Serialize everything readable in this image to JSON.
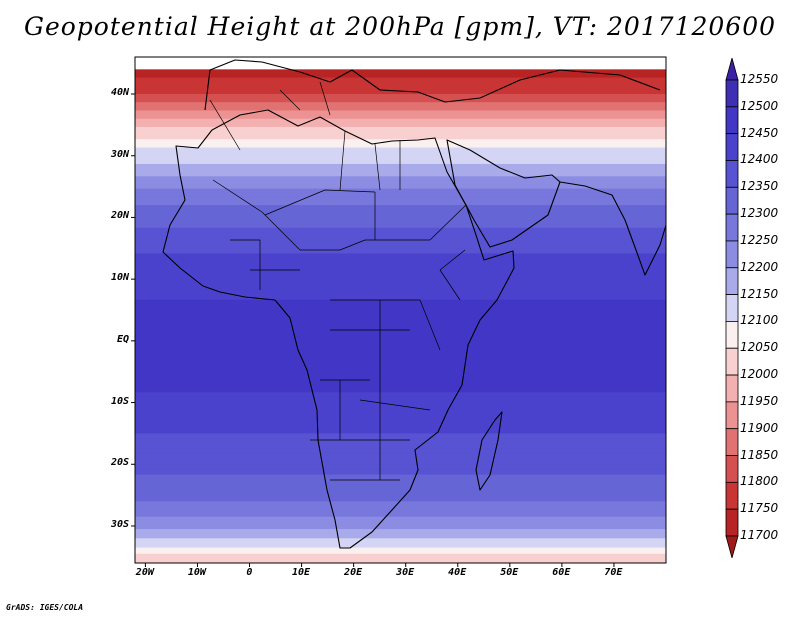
{
  "title": "Geopotential Height at 200hPa [gpm], VT: 2017120600",
  "credit": "GrADS: IGES/COLA",
  "map": {
    "extent": {
      "lon_min": -22,
      "lon_max": 80,
      "lat_min": -36,
      "lat_max": 46
    },
    "lat_ticks": [
      {
        "value": 40,
        "label": "40N"
      },
      {
        "value": 30,
        "label": "30N"
      },
      {
        "value": 20,
        "label": "20N"
      },
      {
        "value": 10,
        "label": "10N"
      },
      {
        "value": 0,
        "label": "EQ"
      },
      {
        "value": -10,
        "label": "10S"
      },
      {
        "value": -20,
        "label": "20S"
      },
      {
        "value": -30,
        "label": "30S"
      }
    ],
    "lon_ticks": [
      {
        "value": -20,
        "label": "20W"
      },
      {
        "value": -10,
        "label": "10W"
      },
      {
        "value": 0,
        "label": "0"
      },
      {
        "value": 10,
        "label": "10E"
      },
      {
        "value": 20,
        "label": "20E"
      },
      {
        "value": 30,
        "label": "30E"
      },
      {
        "value": 40,
        "label": "40E"
      },
      {
        "value": 50,
        "label": "50E"
      },
      {
        "value": 60,
        "label": "60E"
      },
      {
        "value": 70,
        "label": "70E"
      }
    ]
  },
  "colorbar": {
    "labels": [
      "12550",
      "12500",
      "12450",
      "12400",
      "12350",
      "12300",
      "12250",
      "12200",
      "12150",
      "12100",
      "12050",
      "12000",
      "11950",
      "11900",
      "11850",
      "11800",
      "11750",
      "11700"
    ],
    "colors": [
      "#3c21a4",
      "#3e2fb4",
      "#4236c6",
      "#4a42cc",
      "#5753d2",
      "#6665d6",
      "#7777dc",
      "#8b8ce2",
      "#a9aaea",
      "#d4d5f5",
      "#fbf0f0",
      "#f8d0d0",
      "#f2b0b0",
      "#ec9292",
      "#e07272",
      "#d55050",
      "#c93535",
      "#b82424",
      "#a01a1a"
    ]
  },
  "chart_data": {
    "type": "heatmap",
    "title": "Geopotential Height at 200hPa [gpm], VT: 2017120600",
    "variable": "Geopotential Height at 200hPa",
    "units": "gpm",
    "valid_time": "2017120600",
    "x_range": [
      -22,
      80
    ],
    "y_range": [
      -36,
      46
    ],
    "contour_levels": [
      11700,
      11750,
      11800,
      11850,
      11900,
      11950,
      12000,
      12050,
      12100,
      12150,
      12200,
      12250,
      12300,
      12350,
      12400,
      12450,
      12500,
      12550
    ],
    "zonal_profile": [
      {
        "lat": 44,
        "value": 11720
      },
      {
        "lat": 40,
        "value": 11800
      },
      {
        "lat": 36,
        "value": 11950
      },
      {
        "lat": 32,
        "value": 12080
      },
      {
        "lat": 28,
        "value": 12170
      },
      {
        "lat": 24,
        "value": 12260
      },
      {
        "lat": 20,
        "value": 12330
      },
      {
        "lat": 15,
        "value": 12390
      },
      {
        "lat": 10,
        "value": 12430
      },
      {
        "lat": 5,
        "value": 12460
      },
      {
        "lat": 0,
        "value": 12470
      },
      {
        "lat": -5,
        "value": 12465
      },
      {
        "lat": -10,
        "value": 12440
      },
      {
        "lat": -15,
        "value": 12400
      },
      {
        "lat": -20,
        "value": 12370
      },
      {
        "lat": -25,
        "value": 12320
      },
      {
        "lat": -28,
        "value": 12260
      },
      {
        "lat": -31,
        "value": 12180
      },
      {
        "lat": -33,
        "value": 12110
      },
      {
        "lat": -36,
        "value": 12000
      }
    ]
  }
}
